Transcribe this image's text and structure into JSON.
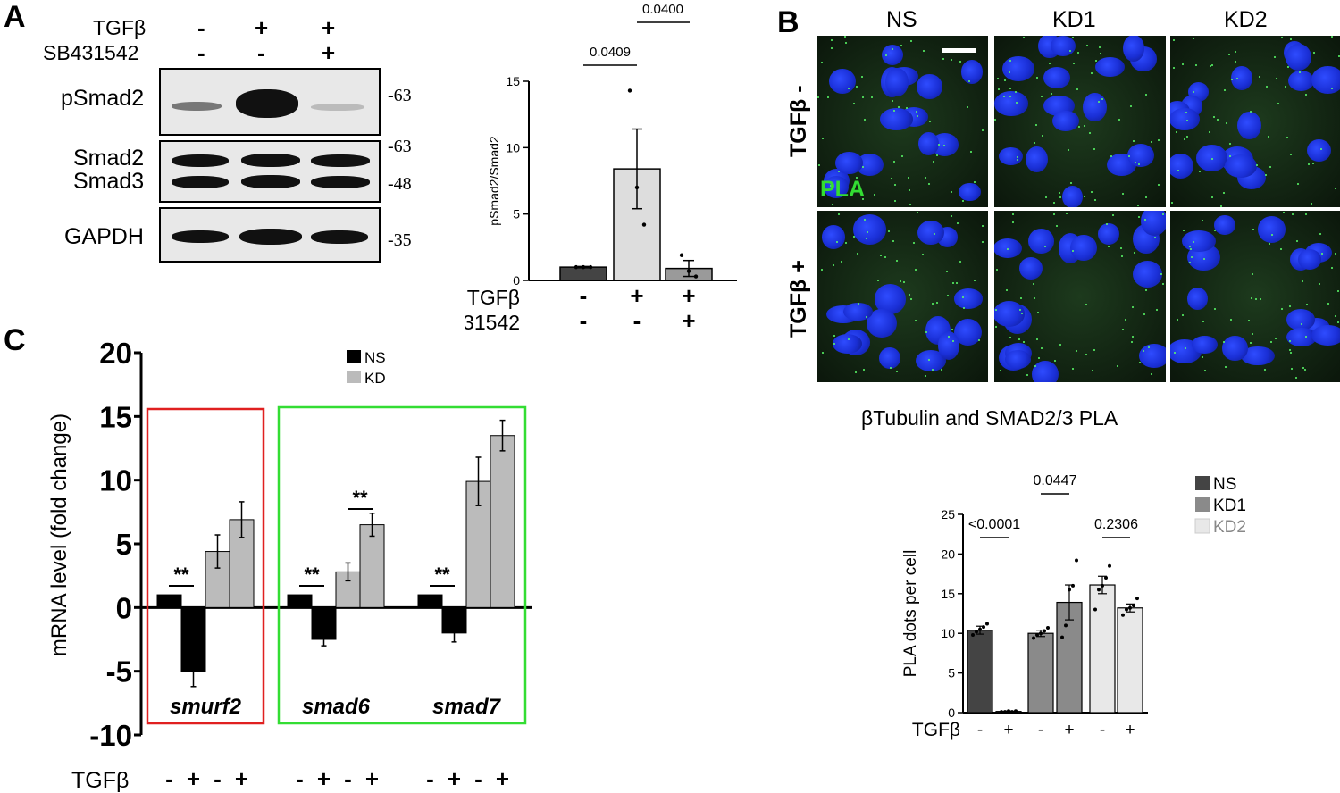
{
  "panel_a": {
    "letter": "A",
    "blot": {
      "row_tgfb_label": "TGFβ",
      "row_sb_label": "SB431542",
      "tgfb_signs": [
        "-",
        "+",
        "+"
      ],
      "sb_signs": [
        "-",
        "-",
        "+"
      ],
      "bands": [
        {
          "label": "pSmad2",
          "mw": "-63"
        },
        {
          "label": "Smad2",
          "mw": "-63"
        },
        {
          "label": "Smad3",
          "mw": "-48"
        },
        {
          "label": "GAPDH",
          "mw": "-35"
        }
      ]
    }
  },
  "chart_data": [
    {
      "id": "A-bar",
      "type": "bar",
      "ylabel": "pSmad2/Smad2",
      "ylim": [
        0,
        15
      ],
      "yticks": [
        0,
        5,
        10,
        15
      ],
      "categories": [
        "-/-",
        "+/-",
        "+/+"
      ],
      "row_labels": [
        "TGFβ",
        "SB431542"
      ],
      "tgfb_signs": [
        "-",
        "+",
        "+"
      ],
      "sb_signs": [
        "-",
        "-",
        "+"
      ],
      "values": [
        1.0,
        8.4,
        0.9
      ],
      "errors": [
        0.05,
        3.0,
        0.6
      ],
      "points": [
        [
          1,
          1,
          1
        ],
        [
          14.3,
          7,
          4.2
        ],
        [
          1.9,
          0.7,
          0.3
        ]
      ],
      "colors": [
        "#444444",
        "#dddddd",
        "#9a9a9a"
      ],
      "significance": [
        {
          "from": 0,
          "to": 1,
          "label": "0.0409"
        },
        {
          "from": 1,
          "to": 2,
          "label": "0.0400"
        }
      ]
    },
    {
      "id": "C-bar",
      "type": "bar",
      "ylabel": "mRNA level (fold change)",
      "ylim": [
        -10,
        20
      ],
      "yticks": [
        -10,
        -5,
        0,
        5,
        10,
        15,
        20
      ],
      "legend": [
        {
          "name": "NS",
          "color": "#000000"
        },
        {
          "name": "KD",
          "color": "#bbbbbb"
        }
      ],
      "x_row_label": "TGFβ",
      "genes": [
        {
          "name": "smurf2",
          "ns": [
            1,
            -5.0
          ],
          "kd": [
            4.4,
            6.9
          ],
          "ns_err": [
            0,
            1.2
          ],
          "kd_err": [
            1.3,
            1.4
          ],
          "sig": "**",
          "sig2": null
        },
        {
          "name": "smad6",
          "ns": [
            1,
            -2.5
          ],
          "kd": [
            2.8,
            6.5
          ],
          "ns_err": [
            0,
            0.5
          ],
          "kd_err": [
            0.7,
            0.9
          ],
          "sig": "**",
          "sig2": "**"
        },
        {
          "name": "smad7",
          "ns": [
            1,
            -2.0
          ],
          "kd": [
            9.9,
            13.5
          ],
          "ns_err": [
            0,
            0.7
          ],
          "kd_err": [
            1.9,
            1.2
          ],
          "sig": "**",
          "sig2": null
        }
      ],
      "signs": [
        "-",
        "+",
        "-",
        "+"
      ],
      "box_colors": {
        "red": "#e02020",
        "green": "#33dd33"
      }
    },
    {
      "id": "B-bar",
      "type": "bar",
      "ylabel": "PLA dots per cell",
      "ylim": [
        0,
        25
      ],
      "yticks": [
        0,
        5,
        10,
        15,
        20,
        25
      ],
      "x_row_label": "TGFβ",
      "signs": [
        "-",
        "+",
        "-",
        "+",
        "-",
        "+"
      ],
      "series": [
        {
          "name": "NS",
          "color": "#444444",
          "values": [
            10.4,
            0.15
          ],
          "errors": [
            0.5,
            0.05
          ],
          "points": [
            [
              9.8,
              10.2,
              10.5,
              10.8,
              11.2
            ],
            [
              0.1,
              0.1,
              0.2,
              0.1,
              0.2
            ]
          ]
        },
        {
          "name": "KD1",
          "color": "#8a8a8a",
          "values": [
            10.0,
            13.9
          ],
          "errors": [
            0.4,
            2.2
          ],
          "points": [
            [
              9.4,
              9.8,
              10.0,
              10.3,
              10.7
            ],
            [
              9.5,
              11.0,
              15.5,
              16.0,
              19.2
            ]
          ]
        },
        {
          "name": "KD2",
          "color": "#e8e8e8",
          "values": [
            16.1,
            13.2
          ],
          "errors": [
            1.1,
            0.5
          ],
          "points": [
            [
              13.0,
              15.5,
              16.0,
              17.0,
              18.5
            ],
            [
              12.3,
              13.0,
              13.2,
              13.5,
              14.4
            ]
          ]
        }
      ],
      "significance": [
        {
          "label": "<0.0001",
          "pair": 0
        },
        {
          "label": "0.0447",
          "pair": 1
        },
        {
          "label": "0.2306",
          "pair": 2
        }
      ],
      "legend": [
        "NS",
        "KD1",
        "KD2"
      ]
    }
  ],
  "panel_b": {
    "letter": "B",
    "columns": [
      "NS",
      "KD1",
      "KD2"
    ],
    "rows": [
      "TGFβ -",
      "TGFβ +"
    ],
    "pla_label": "PLA",
    "caption": "βTubulin and SMAD2/3 PLA"
  },
  "panel_c": {
    "letter": "C"
  }
}
